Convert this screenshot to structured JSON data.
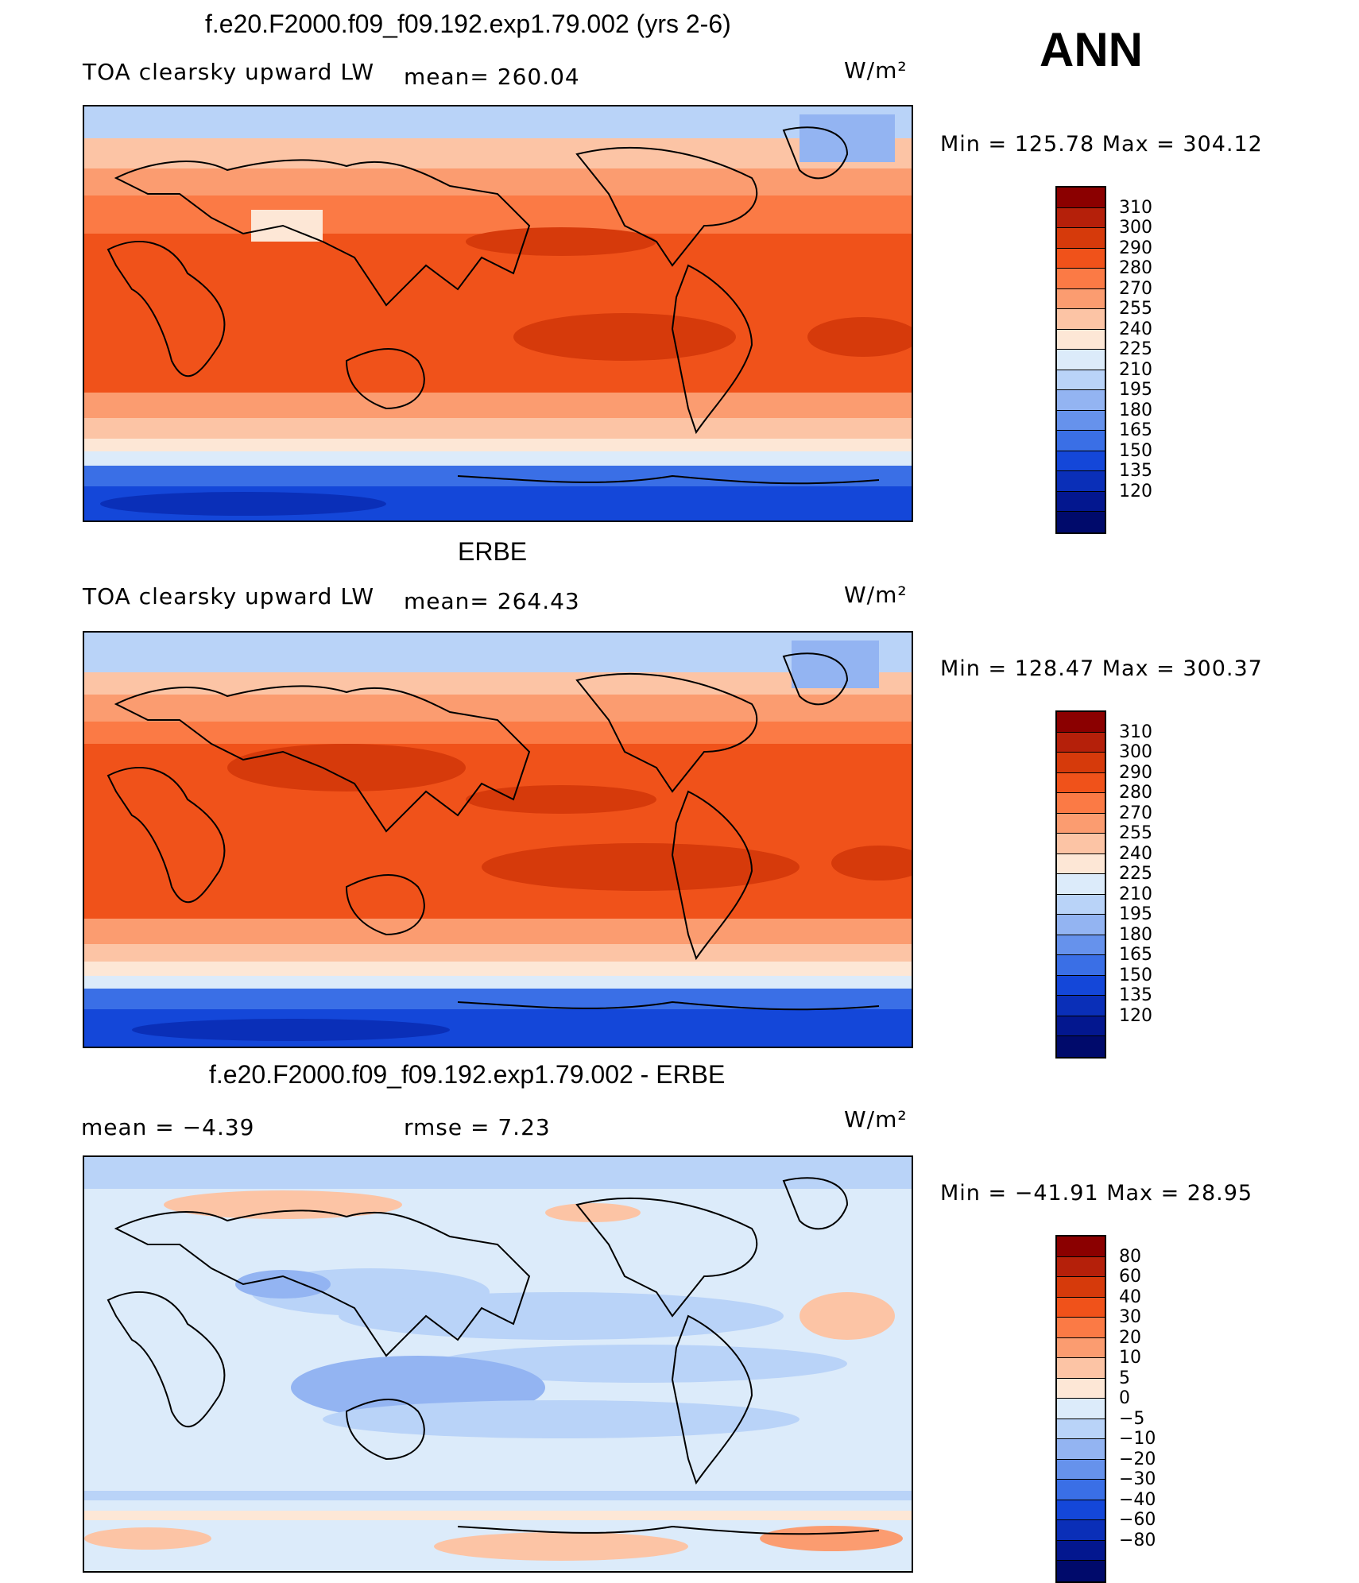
{
  "season": "ANN",
  "panels": [
    {
      "title": "f.e20.F2000.f09_f09.192.exp1.79.002 (yrs 2-6)",
      "left_label": "TOA clearsky upward LW",
      "mid_label": "mean=  260.04",
      "units": "W/m²",
      "minmax": "Min  =  125.78  Max  =  304.12",
      "colorbar": {
        "colors": [
          "#8b0000",
          "#b5200a",
          "#d63a0b",
          "#f0521a",
          "#fb7a45",
          "#fb9c70",
          "#fcc4a5",
          "#fde7d6",
          "#dcebfa",
          "#b9d3f8",
          "#93b4f2",
          "#6692ec",
          "#3a6fe6",
          "#1447d9",
          "#0a2fb8",
          "#03178f",
          "#000a6b"
        ],
        "labels": [
          "310",
          "300",
          "290",
          "280",
          "270",
          "255",
          "240",
          "225",
          "210",
          "195",
          "180",
          "165",
          "150",
          "135",
          "120"
        ]
      }
    },
    {
      "title": "ERBE",
      "left_label": "TOA clearsky upward LW",
      "mid_label": "mean=  264.43",
      "units": "W/m²",
      "minmax": "Min  =  128.47  Max  =  300.37",
      "colorbar": {
        "colors": [
          "#8b0000",
          "#b5200a",
          "#d63a0b",
          "#f0521a",
          "#fb7a45",
          "#fb9c70",
          "#fcc4a5",
          "#fde7d6",
          "#dcebfa",
          "#b9d3f8",
          "#93b4f2",
          "#6692ec",
          "#3a6fe6",
          "#1447d9",
          "#0a2fb8",
          "#03178f",
          "#000a6b"
        ],
        "labels": [
          "310",
          "300",
          "290",
          "280",
          "270",
          "255",
          "240",
          "225",
          "210",
          "195",
          "180",
          "165",
          "150",
          "135",
          "120"
        ]
      }
    },
    {
      "title": "f.e20.F2000.f09_f09.192.exp1.79.002 - ERBE",
      "left_label": "mean  =    −4.39",
      "mid_label": "rmse  =     7.23",
      "units": "W/m²",
      "minmax": "Min  =  −41.91  Max  =    28.95",
      "colorbar": {
        "colors": [
          "#8b0000",
          "#b5200a",
          "#d63a0b",
          "#f0521a",
          "#fb7a45",
          "#fb9c70",
          "#fcc4a5",
          "#fde7d6",
          "#dcebfa",
          "#b9d3f8",
          "#93b4f2",
          "#6692ec",
          "#3a6fe6",
          "#1447d9",
          "#0a2fb8",
          "#03178f",
          "#000a6b"
        ],
        "labels": [
          "80",
          "60",
          "40",
          "30",
          "20",
          "10",
          "5",
          "0",
          "−5",
          "−10",
          "−20",
          "−30",
          "−40",
          "−60",
          "−80"
        ]
      }
    }
  ],
  "map_data": {
    "projection": "cylindrical equidistant, Pacific-centered",
    "lon_range": [
      0,
      360
    ],
    "lat_range": [
      -90,
      90
    ]
  }
}
